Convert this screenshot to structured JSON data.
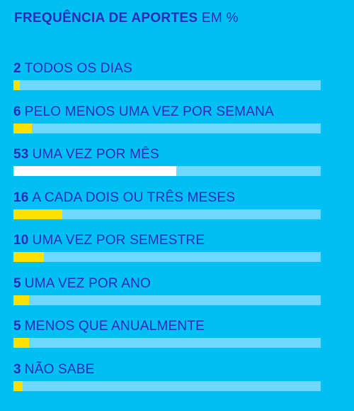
{
  "title_bold": "FREQUÊNCIA DE APORTES",
  "title_light": "EM %",
  "colors": {
    "background": "#00c0f3",
    "track": "#6fd8ff",
    "bar_default": "#ffe000",
    "bar_highlight": "#ffffff",
    "text": "#2b2bb8"
  },
  "chart_data": {
    "type": "bar",
    "orientation": "horizontal",
    "unit": "%",
    "xlim": [
      0,
      100
    ],
    "categories": [
      "TODOS OS DIAS",
      "PELO MENOS UMA VEZ POR SEMANA",
      "UMA VEZ POR MÊS",
      "A CADA DOIS OU TRÊS MESES",
      "UMA VEZ POR SEMESTRE",
      "UMA VEZ POR ANO",
      "MENOS QUE ANUALMENTE",
      "NÃO SABE"
    ],
    "values": [
      2,
      6,
      53,
      16,
      10,
      5,
      5,
      3
    ],
    "highlight_index": 2
  }
}
